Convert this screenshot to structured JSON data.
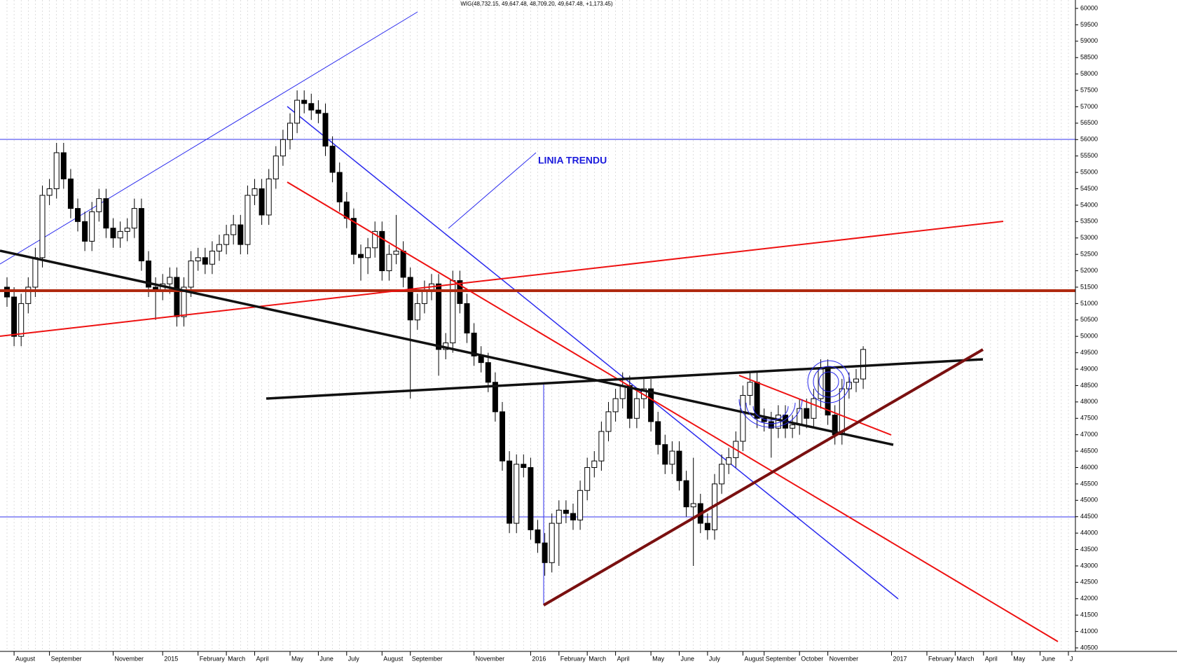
{
  "chart_data": {
    "type": "candlestick",
    "title": "WIG(48,732.15, 49,647.48, 48,709.20, 49,647.48, +1,173.45)",
    "annotation": "LINIA TRENDU",
    "categories": [
      null,
      "August",
      null,
      null,
      null,
      null,
      "September",
      null,
      null,
      null,
      null,
      null,
      null,
      null,
      null,
      "November",
      null,
      null,
      null,
      null,
      null,
      null,
      "2015",
      null,
      null,
      null,
      null,
      "February",
      null,
      null,
      null,
      "March",
      null,
      null,
      null,
      "April",
      null,
      null,
      null,
      null,
      "May",
      null,
      null,
      null,
      "June",
      null,
      null,
      null,
      "July",
      null,
      null,
      null,
      null,
      "August",
      null,
      null,
      null,
      "September",
      null,
      null,
      null,
      null,
      null,
      null,
      null,
      null,
      "November",
      null,
      null,
      null,
      null,
      null,
      null,
      null,
      "2016",
      null,
      null,
      null,
      "February",
      null,
      null,
      null,
      "March",
      null,
      null,
      null,
      "April",
      null,
      null,
      null,
      null,
      "May",
      null,
      null,
      null,
      "June",
      null,
      null,
      null,
      "July",
      null,
      null,
      null,
      null,
      "August",
      null,
      null,
      "September",
      null,
      null,
      null,
      null,
      "October",
      null,
      null,
      null,
      "November",
      null,
      null,
      null,
      null,
      null,
      null,
      null,
      null,
      "2017",
      null,
      null,
      null,
      null,
      "February",
      null,
      null,
      null,
      "March",
      null,
      null,
      null,
      "April",
      null,
      null,
      null,
      "May",
      null,
      null,
      null,
      "June",
      null,
      null,
      null,
      "J",
      null
    ],
    "open": [
      51500,
      51200,
      50000,
      51000,
      51500,
      52400,
      54300,
      54500,
      55600,
      54800,
      53900,
      53500,
      52900,
      53800,
      54200,
      53300,
      53000,
      53200,
      53300,
      53900,
      52300,
      51500,
      51400,
      51600,
      51800,
      50600,
      51500,
      52300,
      52400,
      52200,
      52600,
      52800,
      53100,
      53400,
      52800,
      54300,
      54500,
      53700,
      54800,
      55500,
      56000,
      56500,
      57200,
      57100,
      56900,
      56800,
      55800,
      55000,
      54100,
      53600,
      52500,
      52400,
      52700,
      53200,
      52000,
      52500,
      52600,
      51800,
      50500,
      51000,
      51400,
      51600,
      49600,
      49800,
      51700,
      51000,
      50100,
      49400,
      49200,
      48600,
      47700,
      46200,
      44300,
      46100,
      46000,
      44100,
      43700,
      43100,
      44300,
      44700,
      44600,
      44400,
      45300,
      46000,
      46200,
      47100,
      47700,
      48100,
      48500,
      47500,
      48100,
      48400,
      47400,
      46700,
      46100,
      46500,
      45600,
      44800,
      44900,
      44300,
      44100,
      45500,
      46100,
      46300,
      46800,
      48200,
      48600,
      47500,
      47400,
      47200,
      47600,
      47200,
      47300,
      47800,
      47500,
      48100,
      49000,
      47600,
      47000,
      48400,
      48600,
      48700,
      null,
      null,
      null,
      null,
      null,
      null,
      null,
      null,
      null,
      null,
      null,
      null,
      null,
      null,
      null,
      null,
      null,
      null,
      null,
      null,
      null,
      null,
      null,
      null,
      null,
      null,
      null,
      null,
      null,
      null
    ],
    "high": [
      51800,
      51500,
      51300,
      51800,
      52700,
      54600,
      54800,
      55900,
      55900,
      55100,
      54200,
      53800,
      54100,
      54500,
      54500,
      53600,
      53500,
      53600,
      54200,
      54200,
      52600,
      51800,
      51900,
      52100,
      52100,
      51800,
      52600,
      52700,
      52700,
      52900,
      53100,
      53400,
      53700,
      53700,
      54600,
      54800,
      54800,
      55100,
      55800,
      56300,
      56800,
      57500,
      57500,
      57400,
      57200,
      57100,
      56100,
      55300,
      54400,
      53900,
      52800,
      53000,
      53500,
      53500,
      52800,
      53700,
      52900,
      52100,
      51300,
      51700,
      51900,
      51900,
      50100,
      52000,
      52000,
      51300,
      50400,
      49700,
      49500,
      48900,
      48000,
      46500,
      46400,
      46400,
      46300,
      44400,
      44000,
      44600,
      45000,
      45000,
      44900,
      45600,
      46300,
      46500,
      47400,
      48000,
      48400,
      48900,
      48800,
      48400,
      48700,
      48700,
      47700,
      47000,
      46800,
      46800,
      45900,
      46300,
      45200,
      44600,
      45800,
      46400,
      46600,
      47100,
      48500,
      48900,
      48900,
      47800,
      47700,
      47900,
      47900,
      47600,
      48100,
      48100,
      48400,
      49300,
      49300,
      47900,
      48700,
      48900,
      49000,
      49700,
      null,
      null,
      null,
      null,
      null,
      null,
      null,
      null,
      null,
      null,
      null,
      null,
      null,
      null,
      null,
      null,
      null,
      null,
      null,
      null,
      null,
      null,
      null,
      null,
      null,
      null,
      null,
      null,
      null,
      null
    ],
    "low": [
      50900,
      49700,
      49700,
      50700,
      51200,
      52100,
      54000,
      54200,
      54500,
      53600,
      53200,
      52600,
      52600,
      53500,
      53000,
      52700,
      52700,
      52900,
      53000,
      52000,
      51200,
      50500,
      51100,
      51300,
      50300,
      50300,
      51200,
      52000,
      51900,
      51900,
      52300,
      52500,
      52800,
      52500,
      52500,
      54000,
      53400,
      53400,
      54500,
      55200,
      55700,
      56200,
      56800,
      56600,
      56500,
      55500,
      54700,
      53800,
      53300,
      52200,
      51700,
      51900,
      52400,
      51700,
      51700,
      52200,
      51500,
      48100,
      50200,
      50700,
      51100,
      48800,
      49300,
      49500,
      50700,
      49800,
      49100,
      48900,
      48300,
      47400,
      45900,
      44000,
      44000,
      45700,
      43800,
      43400,
      42700,
      42800,
      43000,
      44300,
      44100,
      44100,
      45000,
      45700,
      45900,
      46800,
      47400,
      47800,
      47200,
      47200,
      47800,
      47100,
      46400,
      45800,
      45800,
      45300,
      44500,
      43000,
      44000,
      43800,
      43800,
      45200,
      45800,
      46000,
      46500,
      47900,
      47200,
      47100,
      46300,
      46900,
      46900,
      46900,
      47000,
      47200,
      47200,
      47800,
      47300,
      46700,
      46700,
      48100,
      48300,
      48400,
      null,
      null,
      null,
      null,
      null,
      null,
      null,
      null,
      null,
      null,
      null,
      null,
      null,
      null,
      null,
      null,
      null,
      null,
      null,
      null,
      null,
      null,
      null,
      null,
      null,
      null,
      null,
      null,
      null,
      null
    ],
    "close": [
      51200,
      50000,
      51000,
      51500,
      52400,
      54300,
      54500,
      55600,
      54800,
      53900,
      53500,
      52900,
      53800,
      54200,
      53300,
      53000,
      53200,
      53300,
      53900,
      52300,
      51500,
      51400,
      51600,
      51800,
      50600,
      51500,
      52300,
      52400,
      52200,
      52600,
      52800,
      53100,
      53400,
      52800,
      54300,
      54500,
      53700,
      54800,
      55500,
      56000,
      56500,
      57200,
      57100,
      56900,
      56800,
      55800,
      55000,
      54100,
      53600,
      52500,
      52400,
      52700,
      53200,
      52000,
      52500,
      52600,
      51800,
      50500,
      51000,
      51400,
      51600,
      49600,
      49800,
      51700,
      51000,
      50100,
      49400,
      49200,
      48600,
      47700,
      46200,
      44300,
      46100,
      46000,
      44100,
      43700,
      43100,
      44300,
      44700,
      44600,
      44400,
      45300,
      46000,
      46200,
      47100,
      47700,
      48100,
      48500,
      47500,
      48100,
      48400,
      47400,
      46700,
      46100,
      46500,
      45600,
      44800,
      44900,
      44300,
      44100,
      45500,
      46100,
      46300,
      46800,
      48200,
      48600,
      47500,
      47400,
      47200,
      47600,
      47200,
      47300,
      47800,
      47500,
      48100,
      49000,
      47600,
      47000,
      48400,
      48600,
      48700,
      49600,
      null,
      null,
      null,
      null,
      null,
      null,
      null,
      null,
      null,
      null,
      null,
      null,
      null,
      null,
      null,
      null,
      null,
      null,
      null,
      null,
      null,
      null,
      null,
      null,
      null,
      null,
      null,
      null,
      null,
      null
    ],
    "up_color": "#ffffff",
    "down_color": "#000000",
    "ylim": [
      40500,
      60000
    ],
    "yticks": [
      40500,
      41000,
      41500,
      42000,
      42500,
      43000,
      43500,
      44000,
      44500,
      45000,
      45500,
      46000,
      46500,
      47000,
      47500,
      48000,
      48500,
      49000,
      49500,
      50000,
      50500,
      51000,
      51500,
      52000,
      52500,
      53000,
      53500,
      54000,
      54500,
      55000,
      55500,
      56000,
      56500,
      57000,
      57500,
      58000,
      58500,
      59000,
      59500,
      60000
    ],
    "y_axis_side": "right",
    "grid": true
  }
}
